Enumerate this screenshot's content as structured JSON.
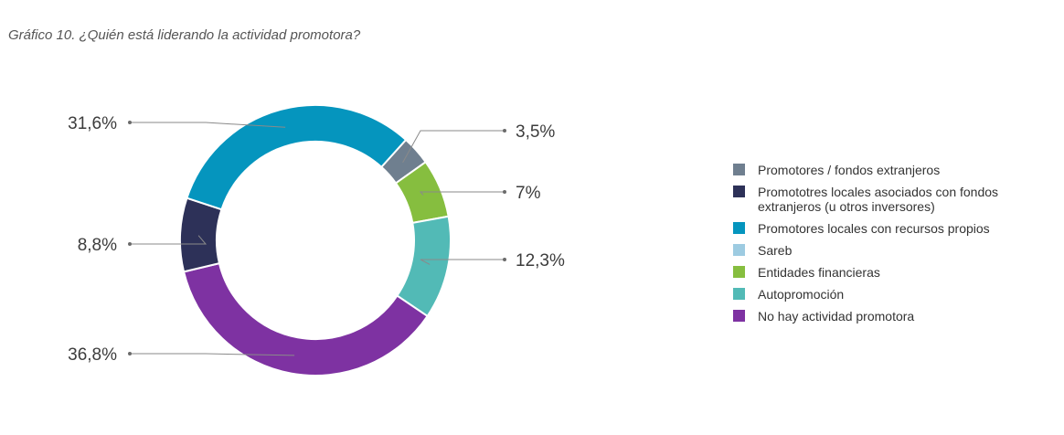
{
  "title": "Gráfico 10. ¿Quién está liderando la actividad promotora?",
  "chart_data": {
    "type": "pie",
    "donut": true,
    "slices": [
      {
        "label": "Promotores / fondos  extranjeros",
        "value": 3.5,
        "display": "3,5%",
        "color": "#6f7f8f"
      },
      {
        "label": "Entidades financieras",
        "value": 7,
        "display": "7%",
        "color": "#86be3f"
      },
      {
        "label": "Autopromoción",
        "value": 12.3,
        "display": "12,3%",
        "color": "#52bab6"
      },
      {
        "label": "No hay actividad promotora",
        "value": 36.8,
        "display": "36,8%",
        "color": "#7e32a2"
      },
      {
        "label": "Promototres locales asociados con fondos extranjeros (u otros inversores)",
        "value": 8.8,
        "display": "8,8%",
        "color": "#2d3158"
      },
      {
        "label": "Promotores locales con recursos propios",
        "value": 31.6,
        "display": "31,6%",
        "color": "#0595be"
      }
    ],
    "legend_position": "right"
  },
  "legend": [
    {
      "label": "Promotores / fondos  extranjeros",
      "color": "#6f7f8f"
    },
    {
      "label": "Promototres locales asociados con fondos extranjeros (u otros inversores)",
      "color": "#2d3158"
    },
    {
      "label": "Promotores locales con recursos propios",
      "color": "#0595be"
    },
    {
      "label": "Sareb",
      "color": "#9dcbe1"
    },
    {
      "label": "Entidades financieras",
      "color": "#86be3f"
    },
    {
      "label": "Autopromoción",
      "color": "#52bab6"
    },
    {
      "label": "No hay actividad promotora",
      "color": "#7e32a2"
    }
  ]
}
